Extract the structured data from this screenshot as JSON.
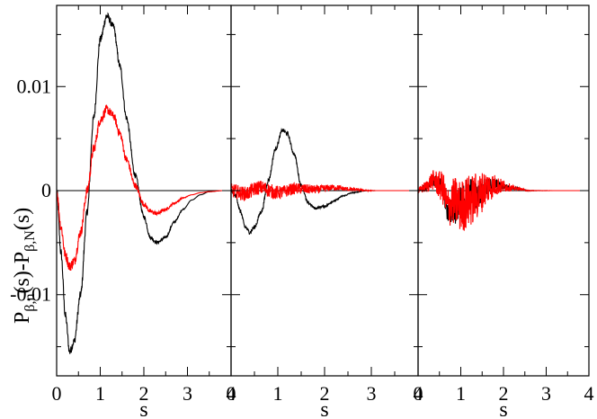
{
  "chart_data": {
    "type": "line",
    "ylabel": {
      "p1": "P",
      "s1": "β,n",
      "m1": "(s)-P",
      "s2": "β,N",
      "m2": "(s)"
    },
    "xlabel": "s",
    "xlim": [
      0,
      4
    ],
    "ylim": [
      -0.0178,
      0.0178
    ],
    "x_ticks": [
      0,
      1,
      2,
      3,
      4
    ],
    "x_tick_labels": [
      "0",
      "1",
      "2",
      "3",
      "4"
    ],
    "y_ticks": [
      -0.01,
      0,
      0.01
    ],
    "y_tick_labels": [
      "-0.01",
      "0",
      "0.01"
    ],
    "zero_line": true,
    "colors": {
      "black": "#000000",
      "red": "#ff0000"
    },
    "panels": [
      {
        "series": [
          {
            "color": "black",
            "noise": 0.0004,
            "points": [
              [
                0,
                0
              ],
              [
                0.1,
                -0.006
              ],
              [
                0.2,
                -0.012
              ],
              [
                0.3,
                -0.0155
              ],
              [
                0.4,
                -0.0145
              ],
              [
                0.55,
                -0.01
              ],
              [
                0.7,
                -0.002
              ],
              [
                0.85,
                0.007
              ],
              [
                1.0,
                0.0145
              ],
              [
                1.15,
                0.0168
              ],
              [
                1.3,
                0.0158
              ],
              [
                1.45,
                0.012
              ],
              [
                1.6,
                0.007
              ],
              [
                1.8,
                0.0015
              ],
              [
                2.0,
                -0.0025
              ],
              [
                2.15,
                -0.0045
              ],
              [
                2.3,
                -0.005
              ],
              [
                2.5,
                -0.0045
              ],
              [
                2.7,
                -0.003
              ],
              [
                2.9,
                -0.0018
              ],
              [
                3.1,
                -0.0009
              ],
              [
                3.3,
                -0.0004
              ],
              [
                3.5,
                -0.0001
              ],
              [
                3.8,
                0
              ],
              [
                4,
                0
              ]
            ]
          },
          {
            "color": "red",
            "noise": 0.0005,
            "points": [
              [
                0,
                0
              ],
              [
                0.1,
                -0.0035
              ],
              [
                0.2,
                -0.0062
              ],
              [
                0.3,
                -0.0073
              ],
              [
                0.4,
                -0.0068
              ],
              [
                0.55,
                -0.004
              ],
              [
                0.7,
                0
              ],
              [
                0.85,
                0.004
              ],
              [
                1.0,
                0.0068
              ],
              [
                1.15,
                0.0078
              ],
              [
                1.3,
                0.0072
              ],
              [
                1.45,
                0.0055
              ],
              [
                1.6,
                0.003
              ],
              [
                1.8,
                0.0005
              ],
              [
                2.0,
                -0.0013
              ],
              [
                2.15,
                -0.002
              ],
              [
                2.3,
                -0.0022
              ],
              [
                2.5,
                -0.0018
              ],
              [
                2.7,
                -0.0012
              ],
              [
                2.9,
                -0.0007
              ],
              [
                3.1,
                -0.0004
              ],
              [
                3.3,
                -0.0002
              ],
              [
                3.5,
                -0.0001
              ],
              [
                3.8,
                0
              ],
              [
                4,
                0
              ]
            ]
          }
        ]
      },
      {
        "series": [
          {
            "color": "black",
            "noise": 0.0002,
            "points": [
              [
                0,
                0
              ],
              [
                0.1,
                -0.0005
              ],
              [
                0.2,
                -0.002
              ],
              [
                0.3,
                -0.0035
              ],
              [
                0.4,
                -0.004
              ],
              [
                0.5,
                -0.0035
              ],
              [
                0.65,
                -0.002
              ],
              [
                0.8,
                0.001
              ],
              [
                0.95,
                0.004
              ],
              [
                1.1,
                0.0058
              ],
              [
                1.2,
                0.0055
              ],
              [
                1.35,
                0.0035
              ],
              [
                1.5,
                0.0005
              ],
              [
                1.65,
                -0.0012
              ],
              [
                1.8,
                -0.0017
              ],
              [
                2.0,
                -0.0015
              ],
              [
                2.2,
                -0.001
              ],
              [
                2.4,
                -0.0005
              ],
              [
                2.6,
                -0.0002
              ],
              [
                2.9,
                0
              ],
              [
                4,
                0
              ]
            ]
          },
          {
            "color": "red",
            "noise": 0.0007,
            "points": [
              [
                0,
                0
              ],
              [
                0.3,
                -0.0003
              ],
              [
                0.6,
                0.0003
              ],
              [
                1.0,
                -0.0002
              ],
              [
                1.4,
                0.0002
              ],
              [
                1.8,
                0.0001
              ],
              [
                2.2,
                0.0003
              ],
              [
                2.6,
                0.0001
              ],
              [
                3.0,
                0
              ],
              [
                4,
                0
              ]
            ]
          }
        ]
      },
      {
        "series": [
          {
            "color": "black",
            "noise": 0.0014,
            "points": [
              [
                0,
                0
              ],
              [
                0.15,
                0.0003
              ],
              [
                0.35,
                0.001
              ],
              [
                0.55,
                0.0004
              ],
              [
                0.7,
                -0.002
              ],
              [
                0.85,
                -0.002
              ],
              [
                1.0,
                -0.001
              ],
              [
                1.2,
                0
              ],
              [
                1.4,
                -0.0005
              ],
              [
                1.6,
                0.0003
              ],
              [
                1.8,
                0.0006
              ],
              [
                2.0,
                0.0004
              ],
              [
                2.3,
                0.0002
              ],
              [
                2.6,
                0
              ],
              [
                4,
                0
              ]
            ]
          },
          {
            "color": "red",
            "noise": 0.0026,
            "points": [
              [
                0,
                0
              ],
              [
                0.15,
                0.0003
              ],
              [
                0.35,
                0.001
              ],
              [
                0.55,
                0.0004
              ],
              [
                0.7,
                -0.0015
              ],
              [
                0.85,
                -0.001
              ],
              [
                1.0,
                -0.0015
              ],
              [
                1.2,
                -0.001
              ],
              [
                1.4,
                -0.0005
              ],
              [
                1.6,
                0.0003
              ],
              [
                1.8,
                0.0005
              ],
              [
                2.0,
                0.0004
              ],
              [
                2.3,
                0.0002
              ],
              [
                2.6,
                0
              ],
              [
                4,
                0
              ]
            ]
          }
        ]
      }
    ]
  }
}
